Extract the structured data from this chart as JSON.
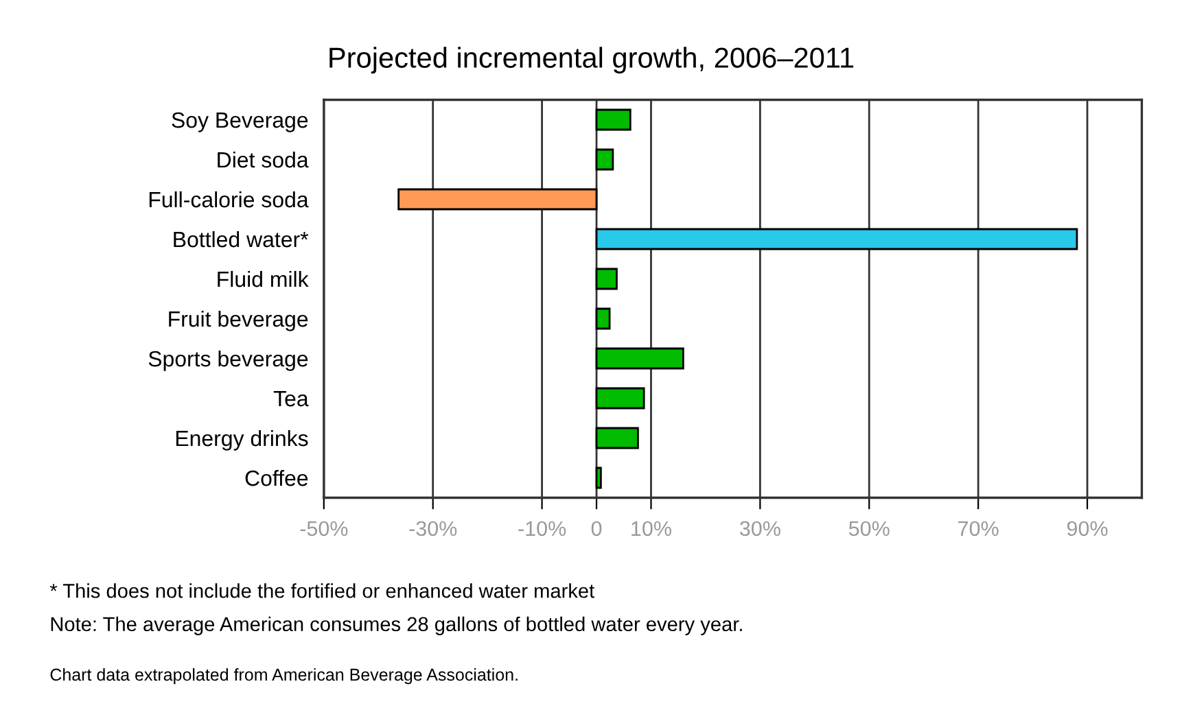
{
  "chart_data": {
    "type": "bar",
    "orientation": "horizontal",
    "title": "Projected incremental growth, 2006–2011",
    "categories": [
      "Soy Beverage",
      "Diet soda",
      "Full-calorie soda",
      "Bottled water*",
      "Fluid milk",
      "Fruit beverage",
      "Sports beverage",
      "Tea",
      "Energy drinks",
      "Coffee"
    ],
    "values": [
      6.2,
      3.0,
      -36.3,
      88.1,
      3.7,
      2.4,
      15.9,
      8.7,
      7.6,
      0.8
    ],
    "colors": [
      "#00bb00",
      "#00bb00",
      "#ff9955",
      "#29c9ea",
      "#00bb00",
      "#00bb00",
      "#00bb00",
      "#00bb00",
      "#00bb00",
      "#00bb00"
    ],
    "xlim": [
      -50,
      100
    ],
    "xticks": [
      {
        "value": -50,
        "label": "-50%"
      },
      {
        "value": -30,
        "label": "-30%"
      },
      {
        "value": -10,
        "label": "-10%"
      },
      0,
      {
        "value": 10,
        "label": "10%"
      },
      {
        "value": 30,
        "label": "30%"
      },
      {
        "value": 50,
        "label": "50%"
      },
      {
        "value": 70,
        "label": "70%"
      },
      {
        "value": 90,
        "label": "90%"
      }
    ],
    "grid": "x",
    "annotations": [
      "* This does not include the fortified or enhanced water market",
      "Note: The average American consumes 28 gallons of bottled water every year.",
      "Chart data extrapolated from American Beverage Association."
    ]
  }
}
